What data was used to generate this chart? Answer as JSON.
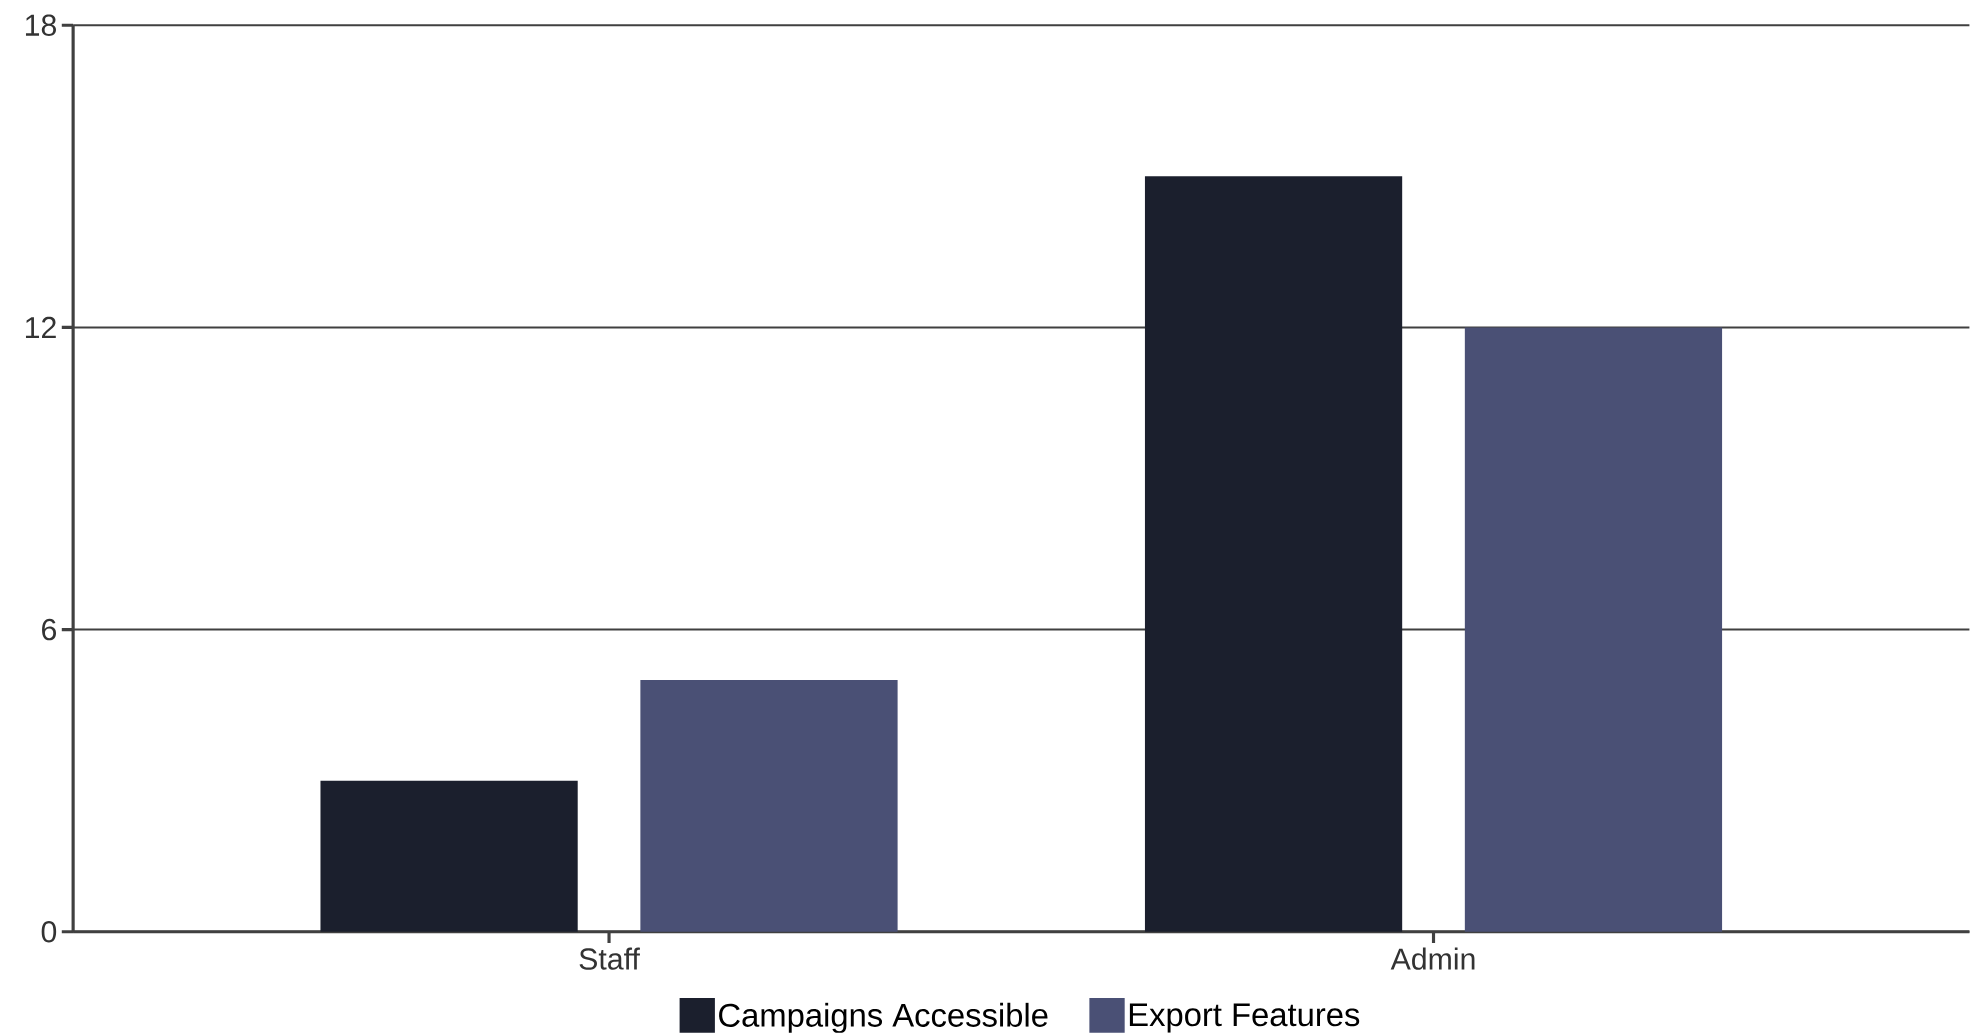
{
  "chart_data": {
    "type": "bar",
    "categories": [
      "Staff",
      "Admin"
    ],
    "series": [
      {
        "name": "Campaigns Accessible",
        "color": "#1b1f2d",
        "values": [
          3,
          15
        ]
      },
      {
        "name": "Export Features",
        "color": "#4a5075",
        "values": [
          5,
          12
        ]
      }
    ],
    "ylim": [
      0,
      18
    ],
    "yticks": [
      0,
      6,
      12,
      18
    ],
    "grid": "y",
    "legend": "bottom"
  }
}
